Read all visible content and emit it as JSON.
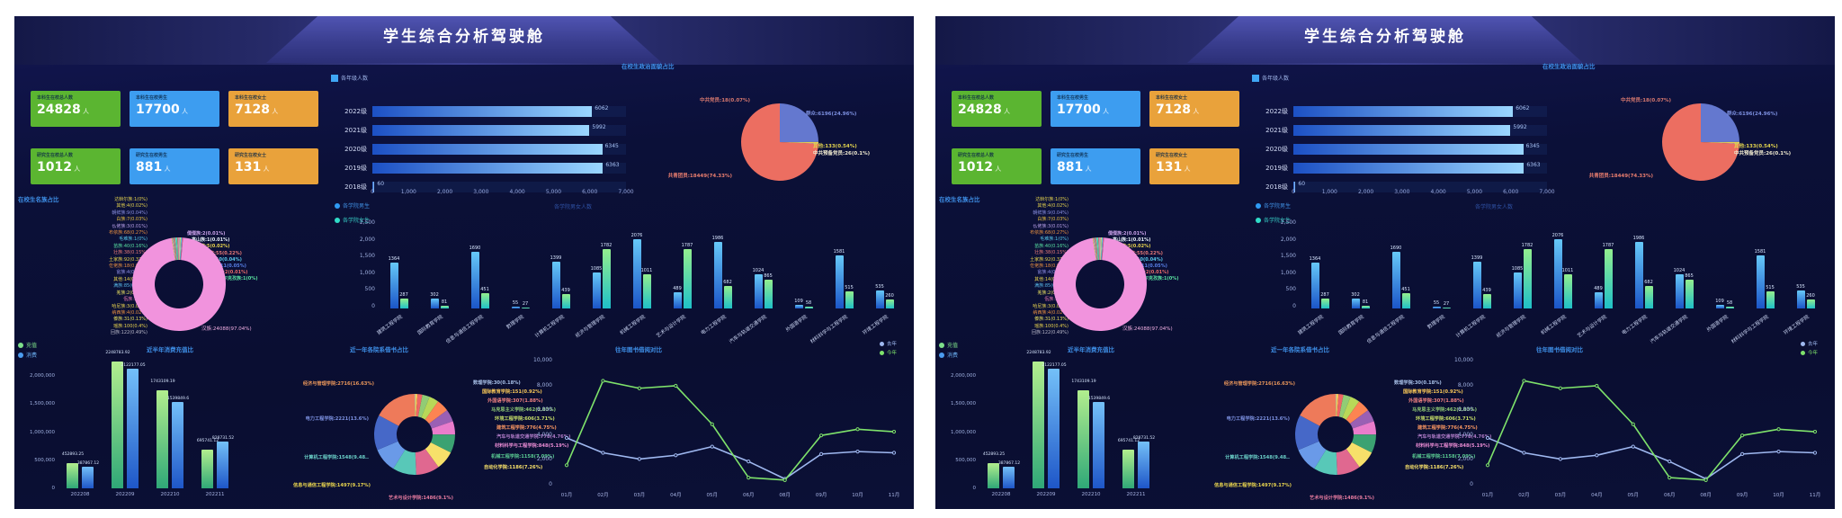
{
  "header": {
    "title": "学生综合分析驾驶舱"
  },
  "cards": [
    {
      "label": "本科生在校总人数",
      "value": "24828",
      "unit": "人",
      "color": "#5bb531"
    },
    {
      "label": "本科生在校男生",
      "value": "17700",
      "unit": "人",
      "color": "#3d9df0"
    },
    {
      "label": "本科生在校女士",
      "value": "7128",
      "unit": "人",
      "color": "#e9a23b"
    },
    {
      "label": "研究生在校总人数",
      "value": "1012",
      "unit": "人",
      "color": "#5bb531"
    },
    {
      "label": "研究生在校男生",
      "value": "881",
      "unit": "人",
      "color": "#3d9df0"
    },
    {
      "label": "研究生在校女士",
      "value": "131",
      "unit": "人",
      "color": "#e9a23b"
    }
  ],
  "chart_data": [
    {
      "id": "grade-bar",
      "type": "bar",
      "orientation": "horizontal",
      "title": "各年级人数",
      "legend_color": "#3fa6f4",
      "categories": [
        "2022级",
        "2021级",
        "2020级",
        "2019级",
        "2018级"
      ],
      "values": [
        6062,
        5992,
        6345,
        6363,
        60
      ],
      "value_labels": [
        "6062",
        "5992",
        "6345",
        "6363",
        "60"
      ],
      "xlim": [
        0,
        7000
      ],
      "x_ticks": [
        "0",
        "1,000",
        "2,000",
        "3,000",
        "4,000",
        "5,000",
        "6,000",
        "7,000"
      ]
    },
    {
      "id": "political-pie",
      "type": "pie",
      "title": "在校生政治面貌占比",
      "slices": [
        {
          "name": "群众",
          "value": 6196,
          "label": "群众:6196(24.96%)",
          "color": "#6478cf",
          "label_color": "#7d90e0"
        },
        {
          "name": "其他",
          "value": 133,
          "label": "其他:133(0.54%)",
          "color": "#e6cf4e",
          "label_color": "#e3d44e"
        },
        {
          "name": "中共预备党员",
          "value": 26,
          "label": "中共预备党员:26(0.1%)",
          "color": "#f2eecf",
          "label_color": "#efe9cf"
        },
        {
          "name": "中共党员",
          "value": 18,
          "label": "中共党员:18(0.07%)",
          "color": "#ffffff",
          "label_color": "#d4776e"
        },
        {
          "name": "共青团员",
          "value": 18449,
          "label": "共青团员:18449(74.33%)",
          "color": "#ec6e61",
          "label_color": "#e87d6e"
        }
      ]
    },
    {
      "id": "ethnic-donut",
      "type": "donut",
      "title": "在校生名族占比",
      "main_slice": {
        "name": "汉族",
        "value": 24088,
        "color": "#f193dd"
      },
      "main_label": "汉族:24088(97.04%)",
      "minor_colors": [
        "#e6cf4e",
        "#8a90e0",
        "#e89040",
        "#58c8e8",
        "#58e0a0",
        "#e87a78",
        "#b8a0e8",
        "#e8e060",
        "#50c8e8",
        "#d06890"
      ],
      "left_labels": [
        {
          "t": "达斡尔族:1(0%)",
          "c": "#e6d44e"
        },
        {
          "t": "其他:4(0.02%)",
          "c": "#e6d44e"
        },
        {
          "t": "朝鲜族:9(0.04%)",
          "c": "#8a90e0"
        },
        {
          "t": "白族:7(0.03%)",
          "c": "#e8c040"
        },
        {
          "t": "仫佬族:3(0.01%)",
          "c": "#b8a0e8"
        },
        {
          "t": "布依族:68(0.27%)",
          "c": "#e89040"
        },
        {
          "t": "毛难族:1(0%)",
          "c": "#58c8e8"
        },
        {
          "t": "苗族:40(0.16%)",
          "c": "#58e0a0"
        },
        {
          "t": "壮族:38(0.15%)",
          "c": "#e87a78"
        },
        {
          "t": "土家族:92(0.37%)",
          "c": "#e8d44e"
        },
        {
          "t": "仡佬族:18(0.07%)",
          "c": "#e89040"
        },
        {
          "t": "畲族:4(0.02%)",
          "c": "#9090e8"
        },
        {
          "t": "其他:14(0.06%)",
          "c": "#e8d44e"
        },
        {
          "t": "满族:85(0.34%)",
          "c": "#58b8e8"
        },
        {
          "t": "羌族:2(0.01%)",
          "c": "#e8e060"
        },
        {
          "t": "佤族:1(0%)",
          "c": "#e87ab0"
        },
        {
          "t": "哈尼族:3(0.01%)",
          "c": "#e8d44e"
        },
        {
          "t": "纳西族:4(0.02%)",
          "c": "#e89040"
        },
        {
          "t": "傣族:31(0.13%)",
          "c": "#e8e060"
        },
        {
          "t": "瑶族:100(0.4%)",
          "c": "#e8d44e"
        },
        {
          "t": "回族:122(0.49%)",
          "c": "#b8b8c8"
        }
      ],
      "right_labels": [
        {
          "t": "僳僳族:2(0.01%)",
          "c": "#c8a0e8"
        },
        {
          "t": "高山族:1(0.01%)",
          "c": "#e8f0f8"
        },
        {
          "t": "黎族:5(0.02%)",
          "c": "#e8d44e"
        },
        {
          "t": "蒙古族:55(0.22%)",
          "c": "#e87a78"
        },
        {
          "t": "彝族:10(0.04%)",
          "c": "#58c8e8"
        },
        {
          "t": "藏族:11(0.05%)",
          "c": "#5880e8"
        },
        {
          "t": "水族:2(0.01%)",
          "c": "#e86a6a"
        },
        {
          "t": "柯尔克孜族:1(0%)",
          "c": "#58e0a0"
        }
      ],
      "main_label_color": "#f2b0e4"
    },
    {
      "id": "college-bar",
      "type": "bar",
      "side_title": "各学院男女人数",
      "y_ticks": [
        "2,500",
        "2,000",
        "1,500",
        "1,000",
        "500",
        "0"
      ],
      "ylim": [
        0,
        2500
      ],
      "categories": [
        "建筑工程学院",
        "国际教育学院",
        "信息与通信工程学院",
        "数理学院",
        "计算机工程学院",
        "经济与管理学院",
        "机械工程学院",
        "艺术与设计学院",
        "电力工程学院",
        "汽车与轨道交通学院",
        "外国语学院",
        "材料科学与工程学院",
        "环境工程学院"
      ],
      "series": [
        {
          "name": "各学院男生",
          "legend_color": "#2f9bf4",
          "text_color": "#3f8ee0",
          "values": [
            1364,
            302,
            1690,
            55,
            1399,
            1085,
            2076,
            489,
            1986,
            1024,
            109,
            1581,
            535
          ]
        },
        {
          "name": "各学院女生",
          "legend_color": "#30dcc8",
          "text_color": "#35c8c0",
          "values": [
            287,
            81,
            451,
            27,
            439,
            1782,
            1011,
            1787,
            682,
            865,
            58,
            515,
            260
          ]
        }
      ]
    },
    {
      "id": "consume-bar",
      "type": "bar",
      "title": "近半年消费充值比",
      "categories": [
        "202208",
        "202209",
        "202210",
        "202211"
      ],
      "y_tick_labels": [
        "2,000,000",
        "1,500,000",
        "1,000,000",
        "500,000",
        "0"
      ],
      "y_tick_values": [
        2000000,
        1500000,
        1000000,
        500000,
        0
      ],
      "ylim": [
        0,
        2400000
      ],
      "series": [
        {
          "name": "充值",
          "legend_color": "#7de08a",
          "values": [
            452893.25,
            2248783.92,
            1743109.19,
            695741.12
          ],
          "labels": [
            "452893.25",
            "2248783.92",
            "1743109.19",
            "695741.12"
          ]
        },
        {
          "name": "消费",
          "legend_color": "#4b9cf0",
          "values": [
            387867.12,
            2122177.05,
            1539849.6,
            828731.52
          ],
          "labels": [
            "387867.12",
            "2122177.05",
            "1539849.6",
            "828731.52"
          ]
        }
      ]
    },
    {
      "id": "borrow-donut",
      "type": "pie",
      "title": "近一年各院系借书占比",
      "slices": [
        {
          "name": "数理学院",
          "value": 30,
          "label": "数理学院:30(0.18%)",
          "color": "#73c0de",
          "label_color": "#a8c0e8"
        },
        {
          "name": "国际教育学院",
          "value": 151,
          "label": "国际教育学院:151(0.92%)",
          "color": "#fac858",
          "label_color": "#fac858"
        },
        {
          "name": "外国语学院",
          "value": 307,
          "label": "外国语学院:307(1.88%)",
          "color": "#ee6666",
          "label_color": "#ee8080"
        },
        {
          "name": "马克思主义学院",
          "value": 462,
          "label": "马克思主义学院:462(2.83%)",
          "color": "#91cc75",
          "label_color": "#91cc75"
        },
        {
          "name": "环境工程学院",
          "value": 606,
          "label": "环境工程学院:606(3.71%)",
          "color": "#b8d858",
          "label_color": "#c8e068"
        },
        {
          "name": "建筑工程学院",
          "value": 776,
          "label": "建筑工程学院:776(4.75%)",
          "color": "#fc8452",
          "label_color": "#fc9862"
        },
        {
          "name": "汽车与轨道交通学院",
          "value": 778,
          "label": "汽车与轨道交通学院:778(4.76%)",
          "color": "#9a60b4",
          "label_color": "#b07cc8"
        },
        {
          "name": "材料科学与工程学院",
          "value": 848,
          "label": "材料科学与工程学院:848(5.19%)",
          "color": "#ea7ccc",
          "label_color": "#ea8cd4"
        },
        {
          "name": "机械工程学院",
          "value": 1158,
          "label": "机械工程学院:1158(7.09%)",
          "color": "#3ba272",
          "label_color": "#58c890"
        },
        {
          "name": "自动化学院",
          "value": 1186,
          "label": "自动化学院:1186(7.26%)",
          "color": "#f7e06a",
          "label_color": "#f7e06a"
        },
        {
          "name": "艺术与设计学院",
          "value": 1486,
          "label": "艺术与设计学院:1486(9.1%)",
          "color": "#e06890",
          "label_color": "#e87ca0"
        },
        {
          "name": "信息与通信工程学院",
          "value": 1497,
          "label": "信息与通信工程学院:1497(9.17%)",
          "color": "#58c8b8",
          "label_color": "#e8d44e"
        },
        {
          "name": "计算机工程学院",
          "value": 1548,
          "label": "计算机工程学院:1548(9.48..",
          "color": "#6a9ae8",
          "label_color": "#6ad0c8"
        },
        {
          "name": "电力工程学院",
          "value": 2221,
          "label": "电力工程学院:2221(13.6%)",
          "color": "#4668c8",
          "label_color": "#7c90e0"
        },
        {
          "name": "经济与管理学院",
          "value": 2716,
          "label": "经济与管理学院:2716(16.63%)",
          "color": "#ee7a5a",
          "label_color": "#e8955a"
        }
      ]
    },
    {
      "id": "borrow-line",
      "type": "line",
      "title": "往年图书借阅对比",
      "x_labels": [
        "01月",
        "02月",
        "03月",
        "04月",
        "05月",
        "06月",
        "08月",
        "09月",
        "10月",
        "11月"
      ],
      "y_ticks": [
        "10,000",
        "8,000",
        "6,000",
        "4,000",
        "2,000",
        "0"
      ],
      "ylim": [
        0,
        10000
      ],
      "series": [
        {
          "name": "去年",
          "color": "#9fb8f0",
          "values": [
            3700,
            2500,
            2000,
            2300,
            3000,
            1800,
            400,
            2400,
            2600,
            2500
          ]
        },
        {
          "name": "今年",
          "color": "#7ee26b",
          "values": [
            1500,
            8300,
            7700,
            7900,
            4800,
            500,
            300,
            3900,
            4400,
            4200
          ]
        }
      ]
    }
  ]
}
